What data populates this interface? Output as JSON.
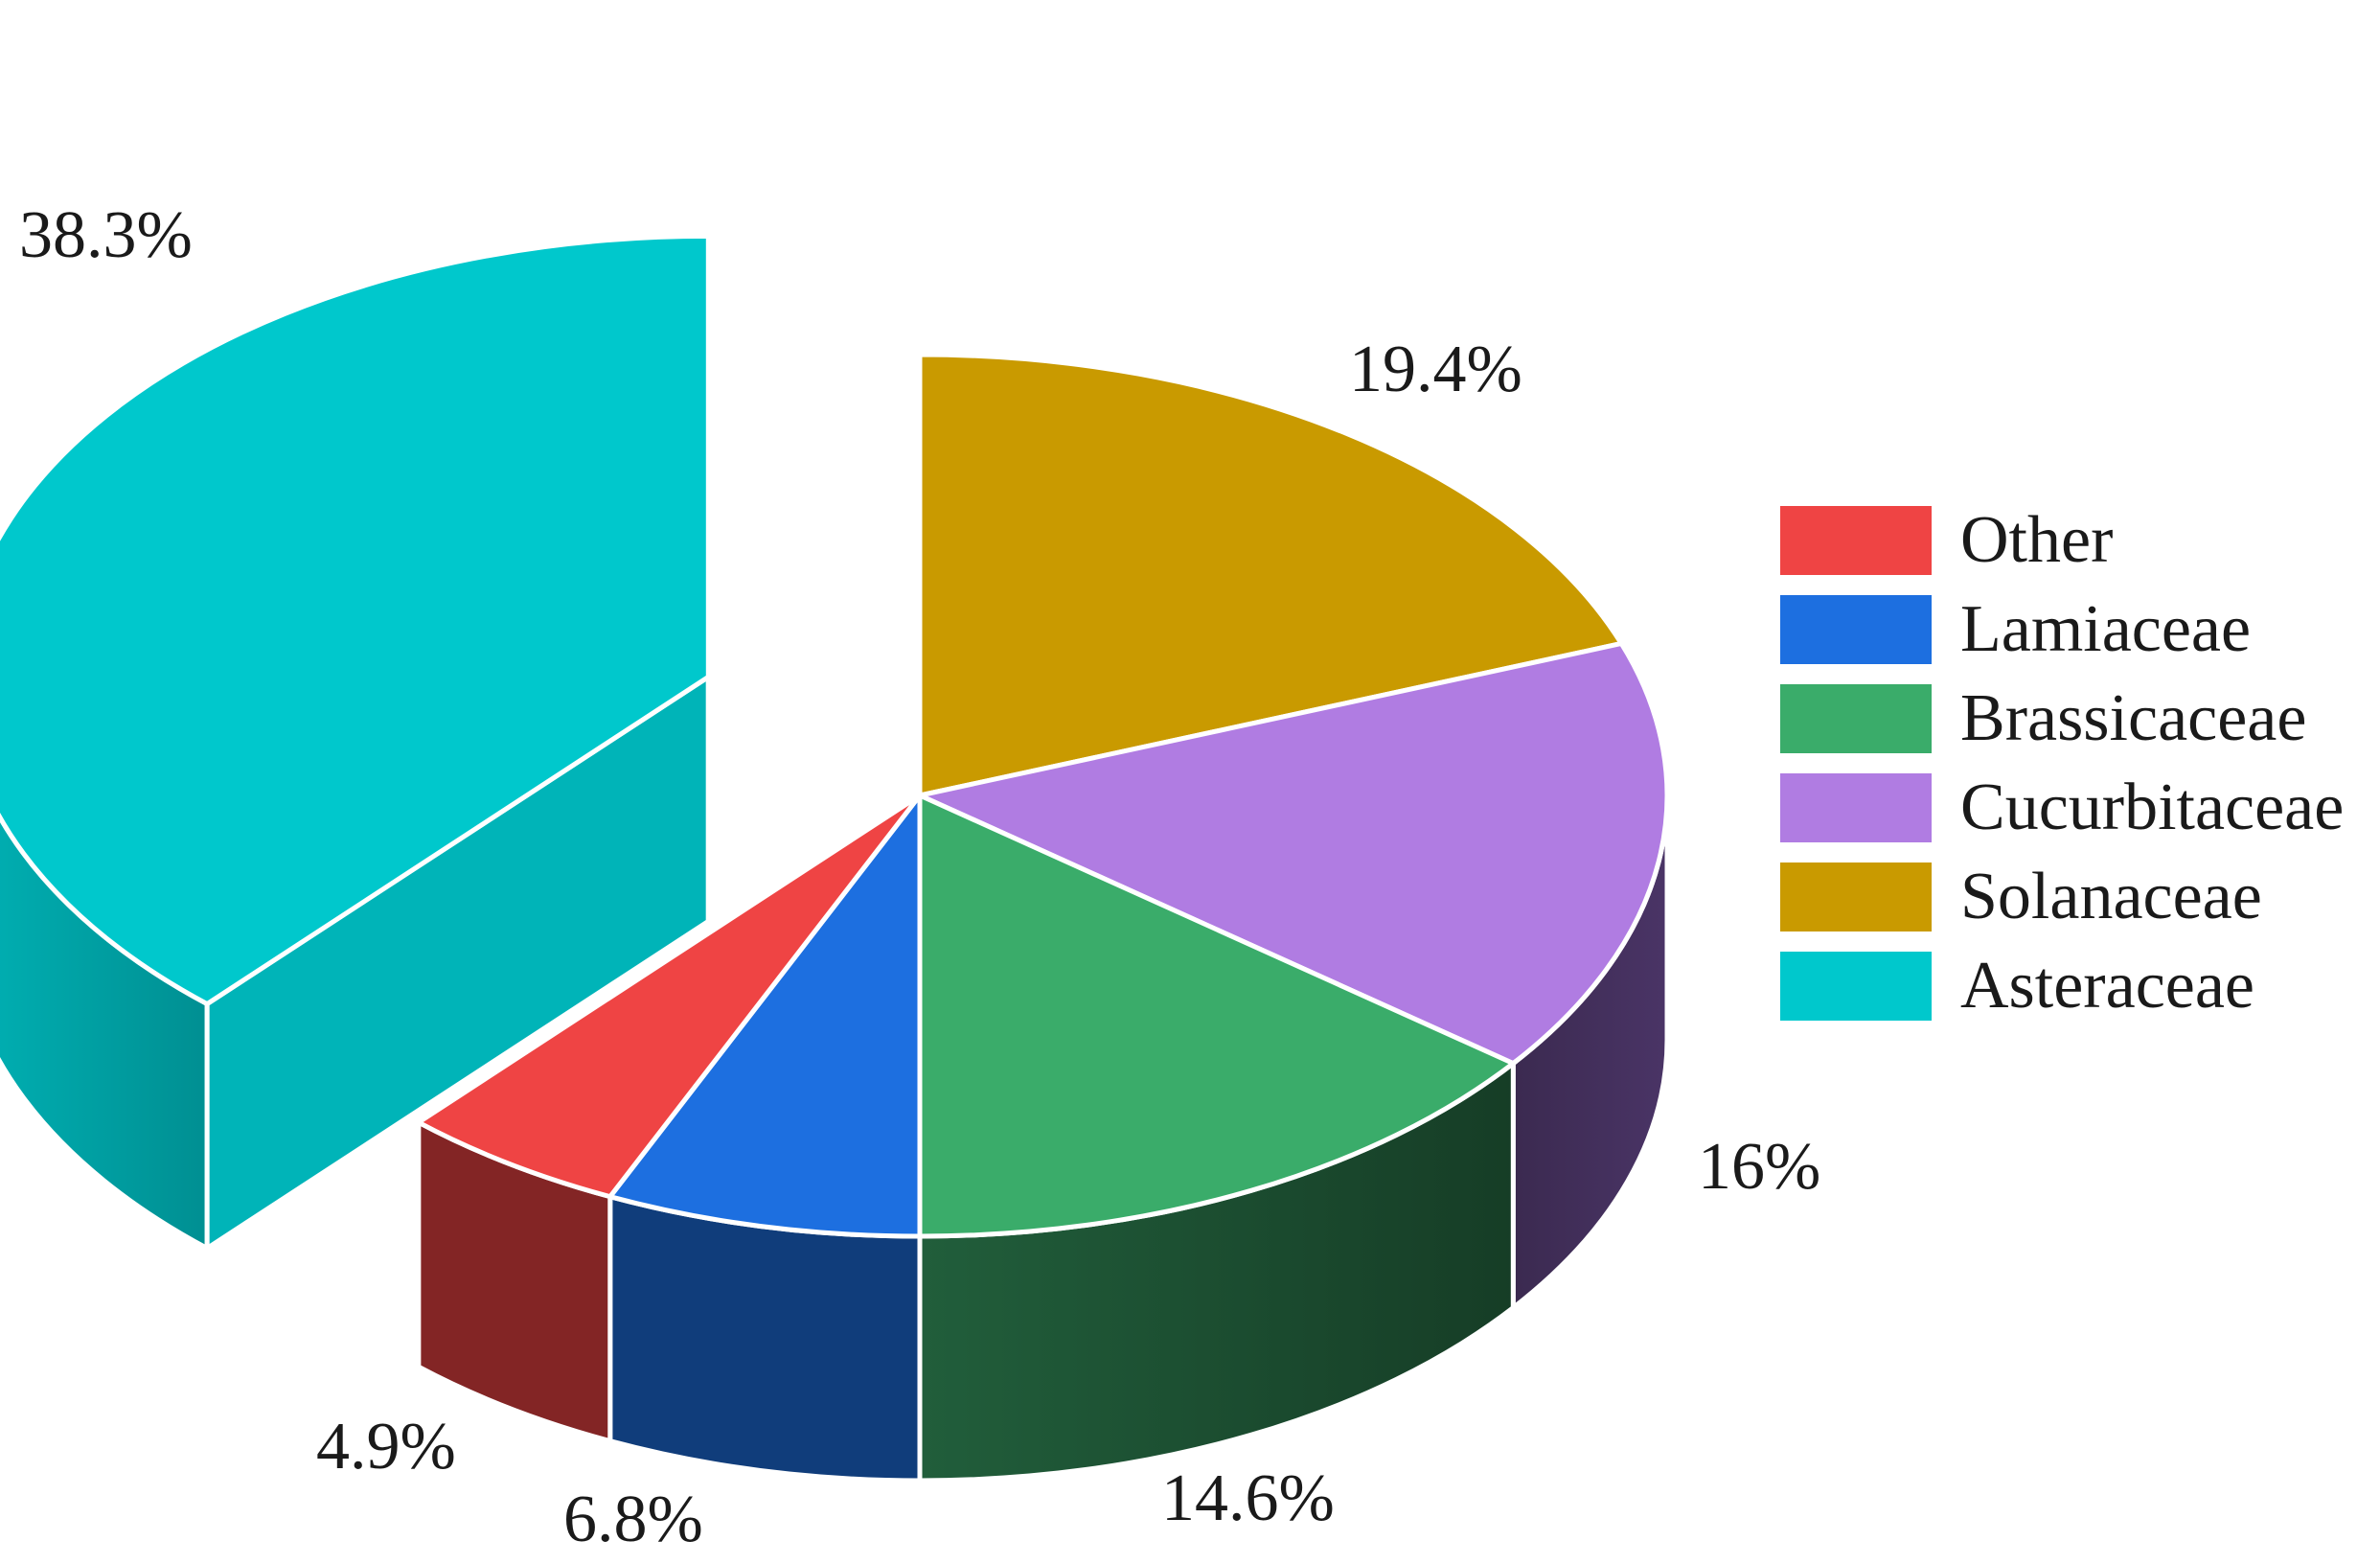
{
  "chart_data": {
    "type": "pie",
    "style": "3d-exploded",
    "title": "",
    "legend_position": "right",
    "categories": [
      "Other",
      "Lamiaceae",
      "Brassicaceae",
      "Cucurbitaceae",
      "Solanaceae",
      "Asteraceae"
    ],
    "values": [
      4.9,
      6.8,
      14.6,
      16,
      19.4,
      38.3
    ],
    "labels": [
      "4.9%",
      "6.8%",
      "14.6%",
      "16%",
      "19.4%",
      "38.3%"
    ],
    "exploded": [
      "Asteraceae"
    ],
    "colors": {
      "Other": "#ef4444",
      "Lamiaceae": "#1d6fe0",
      "Brassicaceae": "#3aac6a",
      "Cucurbitaceae": "#b07ce2",
      "Solanaceae": "#c99a00",
      "Asteraceae": "#00c8cc"
    }
  }
}
